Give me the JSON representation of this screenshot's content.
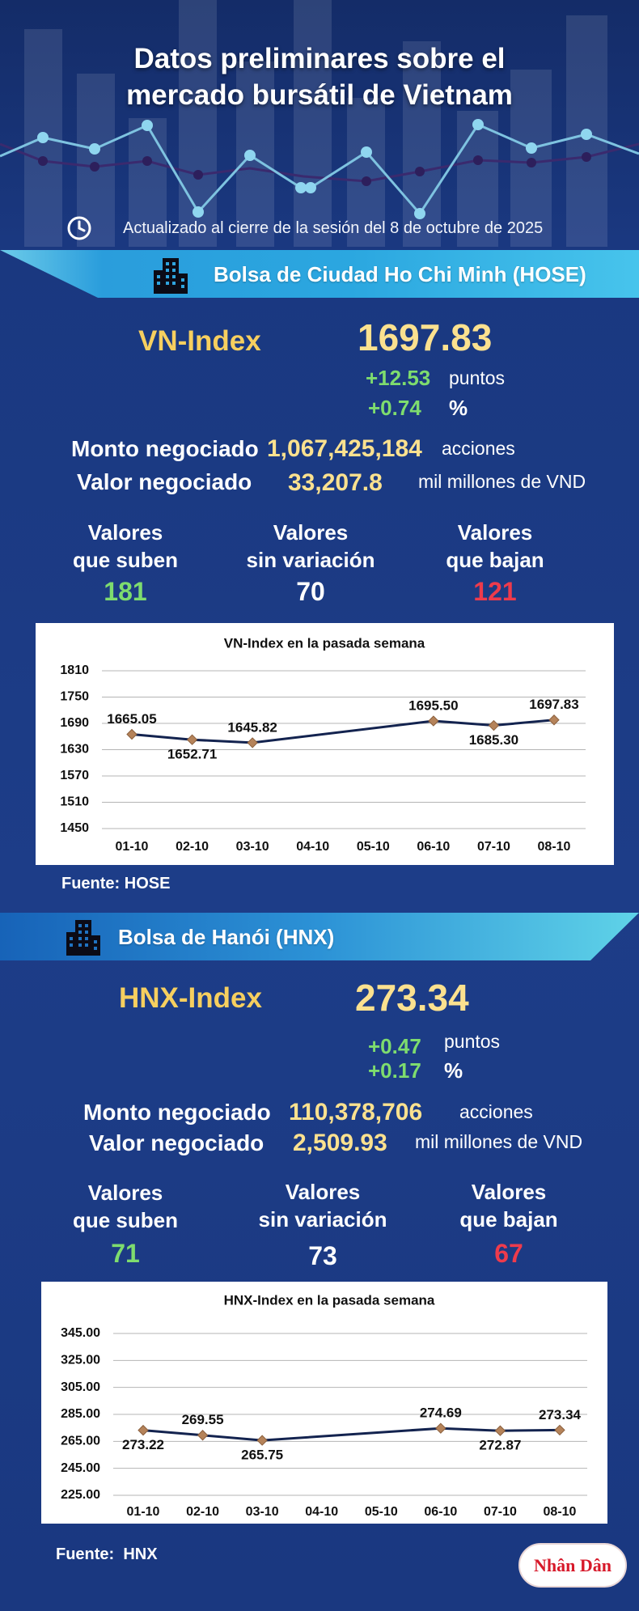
{
  "colors": {
    "background": "#1c3c86",
    "label_yellow": "#f6cf5f",
    "value_yellow": "#fbe18f",
    "up_green": "#7edc6e",
    "down_red": "#ee3b4c",
    "banner_cyan": "#3fbdea",
    "chart_line": "#13234f",
    "marker": "#b5835a"
  },
  "icons": {
    "updated": "clock-icon",
    "exchange": "building-icon"
  },
  "header": {
    "title_line1": "Datos preliminares sobre el",
    "title_line2": "mercado bursátil de Vietnam",
    "updated": "Actualizado al cierre de la sesión del 8 de octubre de 2025"
  },
  "hose": {
    "banner": "Bolsa de Ciudad Ho Chi Minh (HOSE)",
    "index_name": "VN-Index",
    "index_value": "1697.83",
    "change_points": "+12.53",
    "points_unit": "puntos",
    "change_percent": "+0.74",
    "percent_unit": "%",
    "volume_label": "Monto negociado",
    "volume_value": "1,067,425,184",
    "volume_unit": "acciones",
    "value_label": "Valor negociado",
    "value_value": "33,207.8",
    "value_unit": "mil millones de VND",
    "breadth": {
      "up_line1": "Valores",
      "up_line2": "que suben",
      "up": "181",
      "flat_line1": "Valores",
      "flat_line2": "sin variación",
      "flat": "70",
      "down_line1": "Valores",
      "down_line2": "que bajan",
      "down": "121"
    },
    "source": "Fuente: HOSE"
  },
  "hnx": {
    "banner": "Bolsa de Hanói (HNX)",
    "index_name": "HNX-Index",
    "index_value": "273.34",
    "change_points": "+0.47",
    "points_unit": "puntos",
    "change_percent": "+0.17",
    "percent_unit": "%",
    "volume_label": "Monto negociado",
    "volume_value": "110,378,706",
    "volume_unit": "acciones",
    "value_label": "Valor negociado",
    "value_value": "2,509.93",
    "value_unit": "mil millones de VND",
    "breadth": {
      "up_line1": "Valores",
      "up_line2": "que suben",
      "up": "71",
      "flat_line1": "Valores",
      "flat_line2": "sin variación",
      "flat": "73",
      "down_line1": "Valores",
      "down_line2": "que bajan",
      "down": "67"
    },
    "source": "Fuente:  HNX"
  },
  "logo": {
    "text": "Nhân Dân"
  },
  "chart_data": [
    {
      "type": "line",
      "title": "VN-Index en la pasada semana",
      "categories": [
        "01-10",
        "02-10",
        "03-10",
        "04-10",
        "05-10",
        "06-10",
        "07-10",
        "08-10"
      ],
      "series": [
        {
          "values": [
            1665.05,
            1652.71,
            1645.82,
            null,
            null,
            1695.5,
            1685.3,
            1697.83
          ]
        }
      ],
      "data_labels": [
        "1665.05",
        "1652.71",
        "1645.82",
        null,
        null,
        "1695.50",
        "1685.30",
        "1697.83"
      ],
      "y_ticks": [
        "1810",
        "1750",
        "1690",
        "1630",
        "1570",
        "1510",
        "1450"
      ],
      "ylim": [
        1450,
        1810
      ],
      "grid": true,
      "legend": "none"
    },
    {
      "type": "line",
      "title": "HNX-Index en la pasada semana",
      "categories": [
        "01-10",
        "02-10",
        "03-10",
        "04-10",
        "05-10",
        "06-10",
        "07-10",
        "08-10"
      ],
      "series": [
        {
          "values": [
            273.22,
            269.55,
            265.75,
            null,
            null,
            274.69,
            272.87,
            273.34
          ]
        }
      ],
      "data_labels": [
        "273.22",
        "269.55",
        "265.75",
        null,
        null,
        "274.69",
        "272.87",
        "273.34"
      ],
      "y_ticks": [
        "345.00",
        "325.00",
        "305.00",
        "285.00",
        "265.00",
        "245.00",
        "225.00"
      ],
      "ylim": [
        225,
        345
      ],
      "grid": true,
      "legend": "none"
    }
  ]
}
